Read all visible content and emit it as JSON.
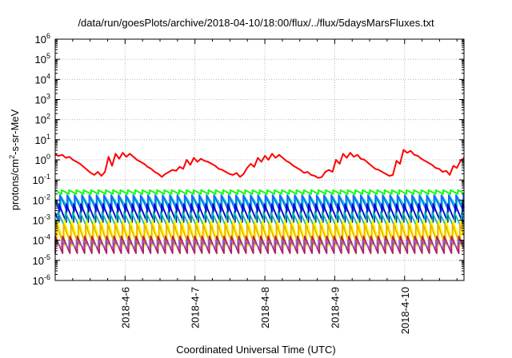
{
  "chart_data": {
    "type": "line",
    "title": "/data/run/goesPlots/archive/2018-04-10/18:00/flux/../flux/5daysMarsFluxes.txt",
    "xlabel": "Coordinated Universal Time (UTC)",
    "ylabel": "protons/cm²-s-sr-MeV",
    "ylabel_parts": {
      "before": "protons/cm",
      "sup": "2",
      "after": "-s-sr-MeV"
    },
    "yscale": "log",
    "ylim_exp": [
      -6,
      6
    ],
    "xlim_days": [
      0,
      5.85
    ],
    "x_ticks": [
      {
        "label": "2018-4-6",
        "day": 1.0
      },
      {
        "label": "2018-4-7",
        "day": 2.0
      },
      {
        "label": "2018-4-8",
        "day": 3.0
      },
      {
        "label": "2018-4-9",
        "day": 4.0
      },
      {
        "label": "2018-4-10",
        "day": 5.0
      }
    ],
    "grid": true,
    "sawtooth_period_days": 0.105,
    "series": [
      {
        "color": "#ff0000",
        "log10_values": [
          0.25,
          0.2,
          0.25,
          0.1,
          0.15,
          0.0,
          -0.1,
          -0.2,
          -0.35,
          -0.5,
          -0.65,
          -0.75,
          -0.6,
          -0.8,
          -0.6,
          0.15,
          -0.3,
          0.3,
          0.05,
          0.35,
          0.15,
          0.3,
          0.15,
          0.0,
          -0.1,
          -0.2,
          -0.35,
          -0.45,
          -0.6,
          -0.7,
          -0.85,
          -0.7,
          -0.6,
          -0.5,
          -0.55,
          -0.35,
          -0.45,
          0.0,
          -0.25,
          0.1,
          -0.1,
          0.05,
          -0.05,
          -0.1,
          -0.2,
          -0.3,
          -0.45,
          -0.5,
          -0.6,
          -0.7,
          -0.75,
          -0.65,
          -0.85,
          -0.7,
          -0.4,
          -0.2,
          -0.35,
          0.1,
          -0.1,
          0.2,
          0.0,
          0.3,
          0.1,
          0.25,
          0.1,
          -0.05,
          -0.15,
          -0.3,
          -0.4,
          -0.5,
          -0.65,
          -0.6,
          -0.75,
          -0.8,
          -0.9,
          -0.85,
          -0.6,
          -0.5,
          -0.6,
          0.0,
          -0.2,
          0.3,
          0.1,
          0.35,
          0.15,
          0.25,
          0.05,
          0.0,
          -0.15,
          -0.3,
          -0.45,
          -0.5,
          -0.6,
          -0.7,
          -0.8,
          -0.75,
          -0.05,
          -0.2,
          0.5,
          0.35,
          0.45,
          0.25,
          0.2,
          0.05,
          -0.05,
          -0.15,
          -0.25,
          -0.4,
          -0.45,
          -0.6,
          -0.55,
          -0.75,
          -0.3,
          -0.4,
          -0.05,
          0.1
        ]
      },
      {
        "color": "#00ff00",
        "log10_values": [
          -1.5,
          -1.7
        ]
      },
      {
        "color": "#00cccc",
        "log10_values": [
          -1.8,
          -2.4
        ]
      },
      {
        "color": "#1a66ff",
        "log10_values": [
          -1.75,
          -2.55
        ]
      },
      {
        "color": "#0000cc",
        "log10_values": [
          -2.2,
          -3.1
        ]
      },
      {
        "color": "#10b8a8",
        "log10_values": [
          -2.6,
          -3.4
        ]
      },
      {
        "color": "#ffff00",
        "log10_values": [
          -3.0,
          -4.3
        ]
      },
      {
        "color": "#f0b000",
        "log10_values": [
          -3.2,
          -4.2
        ]
      },
      {
        "color": "#b02060",
        "log10_values": [
          -3.8,
          -4.65
        ]
      },
      {
        "color": "#a060c0",
        "log10_values": [
          -4.0,
          -4.4
        ]
      }
    ]
  }
}
